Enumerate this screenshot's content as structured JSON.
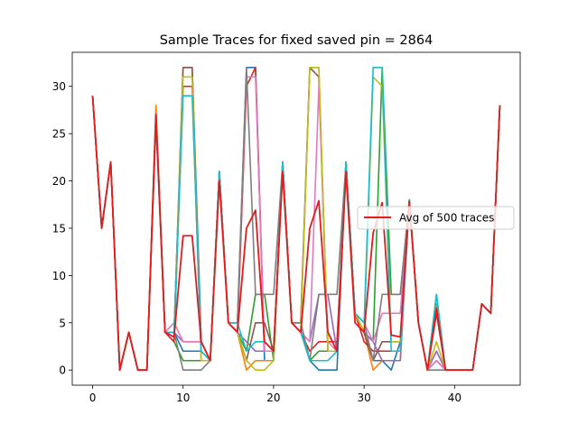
{
  "chart_data": {
    "type": "line",
    "title": "Sample Traces for fixed saved pin = 2864",
    "xlabel": "",
    "ylabel": "",
    "xlim": [
      -2.25,
      47.25
    ],
    "ylim": [
      -1.6,
      33.6
    ],
    "x_ticks": [
      0,
      10,
      20,
      30,
      40
    ],
    "y_ticks": [
      0,
      5,
      10,
      15,
      20,
      25,
      30
    ],
    "x_tick_labels": [
      "0",
      "10",
      "20",
      "30",
      "40"
    ],
    "y_tick_labels": [
      "0",
      "5",
      "10",
      "15",
      "20",
      "25",
      "30"
    ],
    "grid": false,
    "legend": {
      "position": "center-right",
      "entries": [
        "Avg of 500 traces"
      ]
    },
    "average_series": {
      "name": "Avg of 500 traces",
      "color": "#e41a1c",
      "x": [
        0,
        1,
        2,
        3,
        4,
        5,
        6,
        7,
        8,
        9,
        10,
        11,
        12,
        13,
        14,
        15,
        16,
        17,
        18,
        19,
        20,
        21,
        22,
        23,
        24,
        25,
        26,
        27,
        28,
        29,
        30,
        31,
        32,
        33,
        34,
        35,
        36,
        37,
        38,
        39,
        40,
        41,
        42,
        43,
        44,
        45
      ],
      "values": [
        29,
        15,
        22,
        0,
        4,
        0,
        0,
        27,
        4,
        3.5,
        14.2,
        14.2,
        3,
        1,
        20,
        5,
        4,
        15,
        16.9,
        3,
        2,
        21,
        5,
        4,
        15,
        17.9,
        4,
        2,
        21,
        5,
        4,
        14.5,
        17.7,
        3.7,
        3.5,
        17.8,
        5,
        0,
        6.5,
        0,
        0,
        0,
        0,
        7,
        6,
        28
      ]
    },
    "sample_series": [
      {
        "color": "#1f77b4",
        "values": [
          29,
          15,
          22,
          0,
          4,
          0,
          0,
          27,
          4,
          4,
          2,
          2,
          2,
          1,
          21,
          5,
          5,
          32,
          32,
          1,
          1,
          22,
          5,
          5,
          1,
          0,
          0,
          0,
          22,
          6,
          4,
          1,
          1,
          0,
          3,
          18,
          5,
          0,
          7,
          0,
          0,
          0,
          0,
          7,
          6,
          28
        ]
      },
      {
        "color": "#ff7f0e",
        "values": [
          29,
          15,
          22,
          0,
          4,
          0,
          0,
          28,
          4,
          4,
          32,
          32,
          3,
          1,
          21,
          5,
          4,
          0,
          1,
          1,
          1,
          22,
          5,
          5,
          32,
          32,
          2,
          2,
          22,
          6,
          4,
          0,
          1,
          1,
          1,
          18,
          5,
          0,
          7,
          0,
          0,
          0,
          0,
          7,
          6,
          28
        ]
      },
      {
        "color": "#2ca02c",
        "values": [
          29,
          15,
          22,
          0,
          4,
          0,
          0,
          27,
          4,
          3,
          1,
          1,
          1,
          1,
          21,
          5,
          4,
          2,
          8,
          8,
          1,
          22,
          5,
          4,
          1,
          2,
          2,
          2,
          22,
          6,
          4,
          3,
          32,
          8,
          8,
          18,
          5,
          0,
          8,
          0,
          0,
          0,
          0,
          7,
          6,
          28
        ]
      },
      {
        "color": "#d62728",
        "values": [
          29,
          15,
          22,
          0,
          4,
          0,
          0,
          27,
          4,
          3,
          30,
          30,
          1,
          1,
          21,
          5,
          4,
          30,
          32,
          2,
          2,
          22,
          5,
          4,
          2,
          3,
          3,
          3,
          22,
          6,
          3,
          2,
          2,
          2,
          2,
          18,
          5,
          0,
          6,
          0,
          0,
          0,
          0,
          7,
          6,
          28
        ]
      },
      {
        "color": "#9467bd",
        "values": [
          29,
          15,
          22,
          0,
          4,
          0,
          0,
          26,
          4,
          4,
          3,
          3,
          3,
          1,
          21,
          5,
          4,
          3,
          2,
          2,
          2,
          22,
          5,
          4,
          3,
          8,
          8,
          2,
          22,
          6,
          4,
          3,
          1,
          1,
          1,
          18,
          5,
          0,
          2,
          0,
          0,
          0,
          0,
          7,
          6,
          28
        ]
      },
      {
        "color": "#8c564b",
        "values": [
          29,
          15,
          22,
          0,
          4,
          0,
          0,
          27,
          4,
          4,
          32,
          32,
          3,
          1,
          21,
          5,
          4,
          1,
          5,
          5,
          2,
          22,
          5,
          5,
          32,
          31,
          2,
          2,
          22,
          6,
          4,
          1,
          3,
          3,
          3,
          18,
          5,
          0,
          1,
          0,
          0,
          0,
          0,
          7,
          6,
          28
        ]
      },
      {
        "color": "#e377c2",
        "values": [
          29,
          15,
          22,
          0,
          4,
          0,
          0,
          27,
          4,
          5,
          3,
          3,
          3,
          1,
          21,
          5,
          5,
          31,
          31,
          2,
          2,
          22,
          5,
          4,
          3,
          30,
          3,
          2,
          22,
          6,
          5,
          3,
          6,
          6,
          6,
          18,
          5,
          0,
          1,
          0,
          0,
          0,
          0,
          7,
          6,
          28
        ]
      },
      {
        "color": "#7f7f7f",
        "values": [
          29,
          15,
          22,
          0,
          4,
          0,
          0,
          27,
          4,
          4,
          0,
          0,
          0,
          1,
          21,
          5,
          5,
          32,
          8,
          8,
          8,
          22,
          5,
          5,
          1,
          8,
          8,
          8,
          22,
          6,
          5,
          1,
          8,
          8,
          8,
          18,
          5,
          0,
          0,
          0,
          0,
          0,
          0,
          7,
          6,
          28
        ]
      },
      {
        "color": "#bcbd22",
        "values": [
          29,
          15,
          22,
          0,
          4,
          0,
          0,
          27,
          4,
          4,
          31,
          31,
          1,
          1,
          21,
          5,
          4,
          1,
          0,
          0,
          1,
          22,
          5,
          4,
          32,
          32,
          2,
          2,
          22,
          6,
          4,
          31,
          30,
          3,
          3,
          18,
          5,
          0,
          3,
          0,
          0,
          0,
          0,
          7,
          6,
          28
        ]
      },
      {
        "color": "#17becf",
        "values": [
          29,
          15,
          22,
          0,
          4,
          0,
          0,
          27,
          4,
          4,
          29,
          29,
          2,
          1,
          21,
          5,
          5,
          2,
          3,
          3,
          2,
          22,
          5,
          4,
          1,
          1,
          1,
          2,
          22,
          6,
          5,
          32,
          32,
          2,
          2,
          18,
          5,
          0,
          8,
          0,
          0,
          0,
          0,
          7,
          6,
          28
        ]
      }
    ]
  }
}
